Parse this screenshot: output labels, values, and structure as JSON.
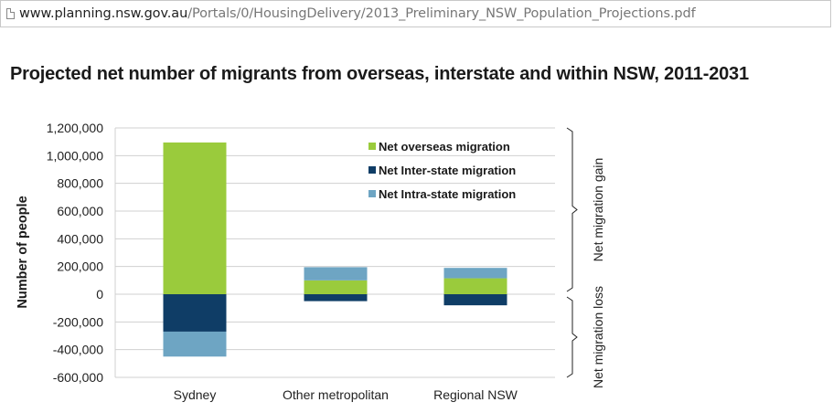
{
  "browser": {
    "url_host": "www.planning.nsw.gov.au",
    "url_path": "/Portals/0/HousingDelivery/2013_Preliminary_NSW_Population_Projections.pdf"
  },
  "chart_data": {
    "type": "bar",
    "stacked": true,
    "title": "Projected net number of migrants from overseas, interstate and within NSW, 2011-2031",
    "xlabel": "",
    "ylabel": "Number of people",
    "ylim": [
      -600000,
      1200000
    ],
    "yticks": [
      -600000,
      -400000,
      -200000,
      0,
      200000,
      400000,
      600000,
      800000,
      1000000,
      1200000
    ],
    "ytick_labels": [
      "-600,000",
      "-400,000",
      "-200,000",
      "0",
      "200,000",
      "400,000",
      "600,000",
      "800,000",
      "1,000,000",
      "1,200,000"
    ],
    "categories": [
      "Sydney",
      "Other metropolitan",
      "Regional NSW"
    ],
    "series": [
      {
        "name": "Net overseas migration",
        "color": "#9acb3c",
        "values": [
          1095000,
          100000,
          115000
        ]
      },
      {
        "name": "Net Inter-state migration",
        "color": "#0f3d66",
        "values": [
          -270000,
          -50000,
          -80000
        ]
      },
      {
        "name": "Net Intra-state migration",
        "color": "#6ea5c3",
        "values": [
          -180000,
          95000,
          75000
        ]
      }
    ],
    "grid": true,
    "legend_position": "top-right",
    "side_annotations": [
      "Net migration gain",
      "Net migration loss"
    ]
  }
}
